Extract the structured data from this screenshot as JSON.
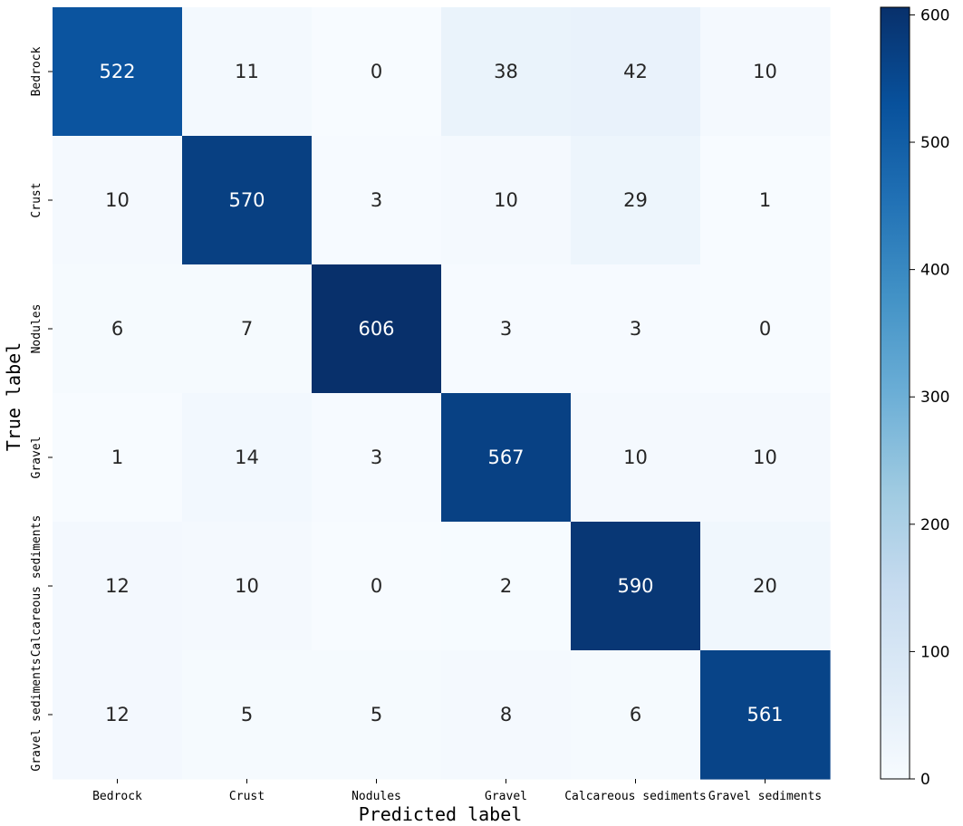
{
  "chart_data": {
    "type": "heatmap",
    "title": "",
    "xlabel": "Predicted label",
    "ylabel": "True label",
    "x_categories": [
      "Bedrock",
      "Crust",
      "Nodules",
      "Gravel",
      "Calcareous sediments",
      "Gravel sediments"
    ],
    "y_categories": [
      "Bedrock",
      "Crust",
      "Nodules",
      "Gravel",
      "Calcareous sediments",
      "Gravel sediments"
    ],
    "values": [
      [
        522,
        11,
        0,
        38,
        42,
        10
      ],
      [
        10,
        570,
        3,
        10,
        29,
        1
      ],
      [
        6,
        7,
        606,
        3,
        3,
        0
      ],
      [
        1,
        14,
        3,
        567,
        10,
        10
      ],
      [
        12,
        10,
        0,
        2,
        590,
        20
      ],
      [
        12,
        5,
        5,
        8,
        6,
        561
      ]
    ],
    "colormap": "Blues",
    "colorbar": {
      "range": [
        0,
        606
      ],
      "ticks": [
        0,
        100,
        200,
        300,
        400,
        500,
        600
      ],
      "placement": "right"
    },
    "grid": false,
    "legend": "none"
  }
}
